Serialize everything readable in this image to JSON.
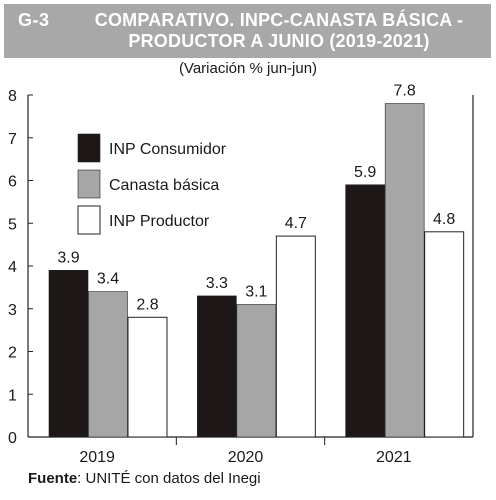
{
  "header": {
    "code": "G-3",
    "title_line1": "COMPARATIVO. INPC-CANASTA BÁSICA -",
    "title_line2": "PRODUCTOR A JUNIO (2019-2021)"
  },
  "subtitle": "(Variación % jun-jun)",
  "source": {
    "label": "Fuente",
    "text": ": UNITÉ con datos del Inegi"
  },
  "colors": {
    "consumidor": "#1e1717",
    "canasta": "#a6a6a6",
    "productor": "#ffffff",
    "outline": "#222222"
  },
  "chart_data": {
    "type": "bar",
    "categories": [
      "2019",
      "2020",
      "2021"
    ],
    "series": [
      {
        "name": "INP Consumidor",
        "values": [
          3.9,
          3.3,
          5.9
        ]
      },
      {
        "name": "Canasta básica",
        "values": [
          3.4,
          3.1,
          7.8
        ]
      },
      {
        "name": "INP Productor",
        "values": [
          2.8,
          4.7,
          4.8
        ]
      }
    ],
    "data_labels": [
      [
        "3.9",
        "3.3",
        "5.9"
      ],
      [
        "3.4",
        "3.1",
        "7.8"
      ],
      [
        "2.8",
        "4.7",
        "4.8"
      ]
    ],
    "yticks": [
      "0",
      "1",
      "2",
      "3",
      "4",
      "5",
      "6",
      "7",
      "8"
    ],
    "ylim": [
      0,
      8
    ],
    "legend_position": "top-left",
    "grid": false
  }
}
